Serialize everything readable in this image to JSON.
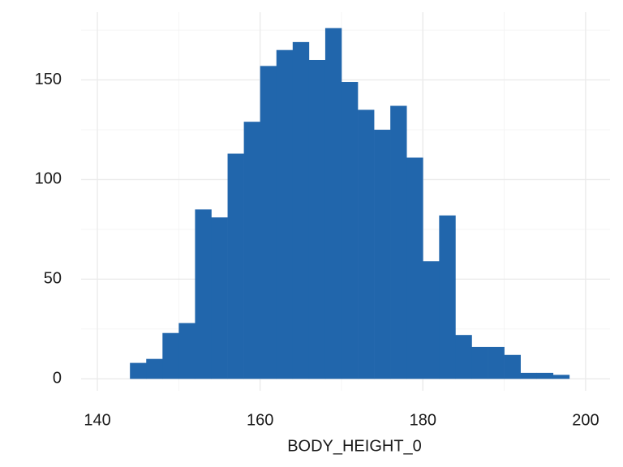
{
  "chart_data": {
    "type": "histogram",
    "x_label": "BODY_HEIGHT_0",
    "bins": [
      144,
      146,
      148,
      150,
      152,
      154,
      156,
      158,
      160,
      162,
      164,
      166,
      168,
      170,
      172,
      174,
      176,
      178,
      180,
      182,
      184,
      186,
      188,
      190,
      192,
      194,
      196,
      198
    ],
    "values": [
      8,
      10,
      23,
      28,
      85,
      81,
      113,
      129,
      157,
      165,
      169,
      160,
      176,
      149,
      135,
      125,
      137,
      111,
      59,
      82,
      22,
      16,
      16,
      12,
      3,
      3,
      2
    ],
    "color": "#2166ac",
    "xlim": [
      138,
      203
    ],
    "xticks": [
      140,
      160,
      180,
      200
    ],
    "x_minor_ticks": [
      150,
      170,
      190
    ],
    "ylim": [
      -6,
      184
    ],
    "yticks": [
      0,
      50,
      100,
      150
    ],
    "y_minor_ticks": [
      25,
      75,
      125,
      175
    ],
    "grid": true
  }
}
